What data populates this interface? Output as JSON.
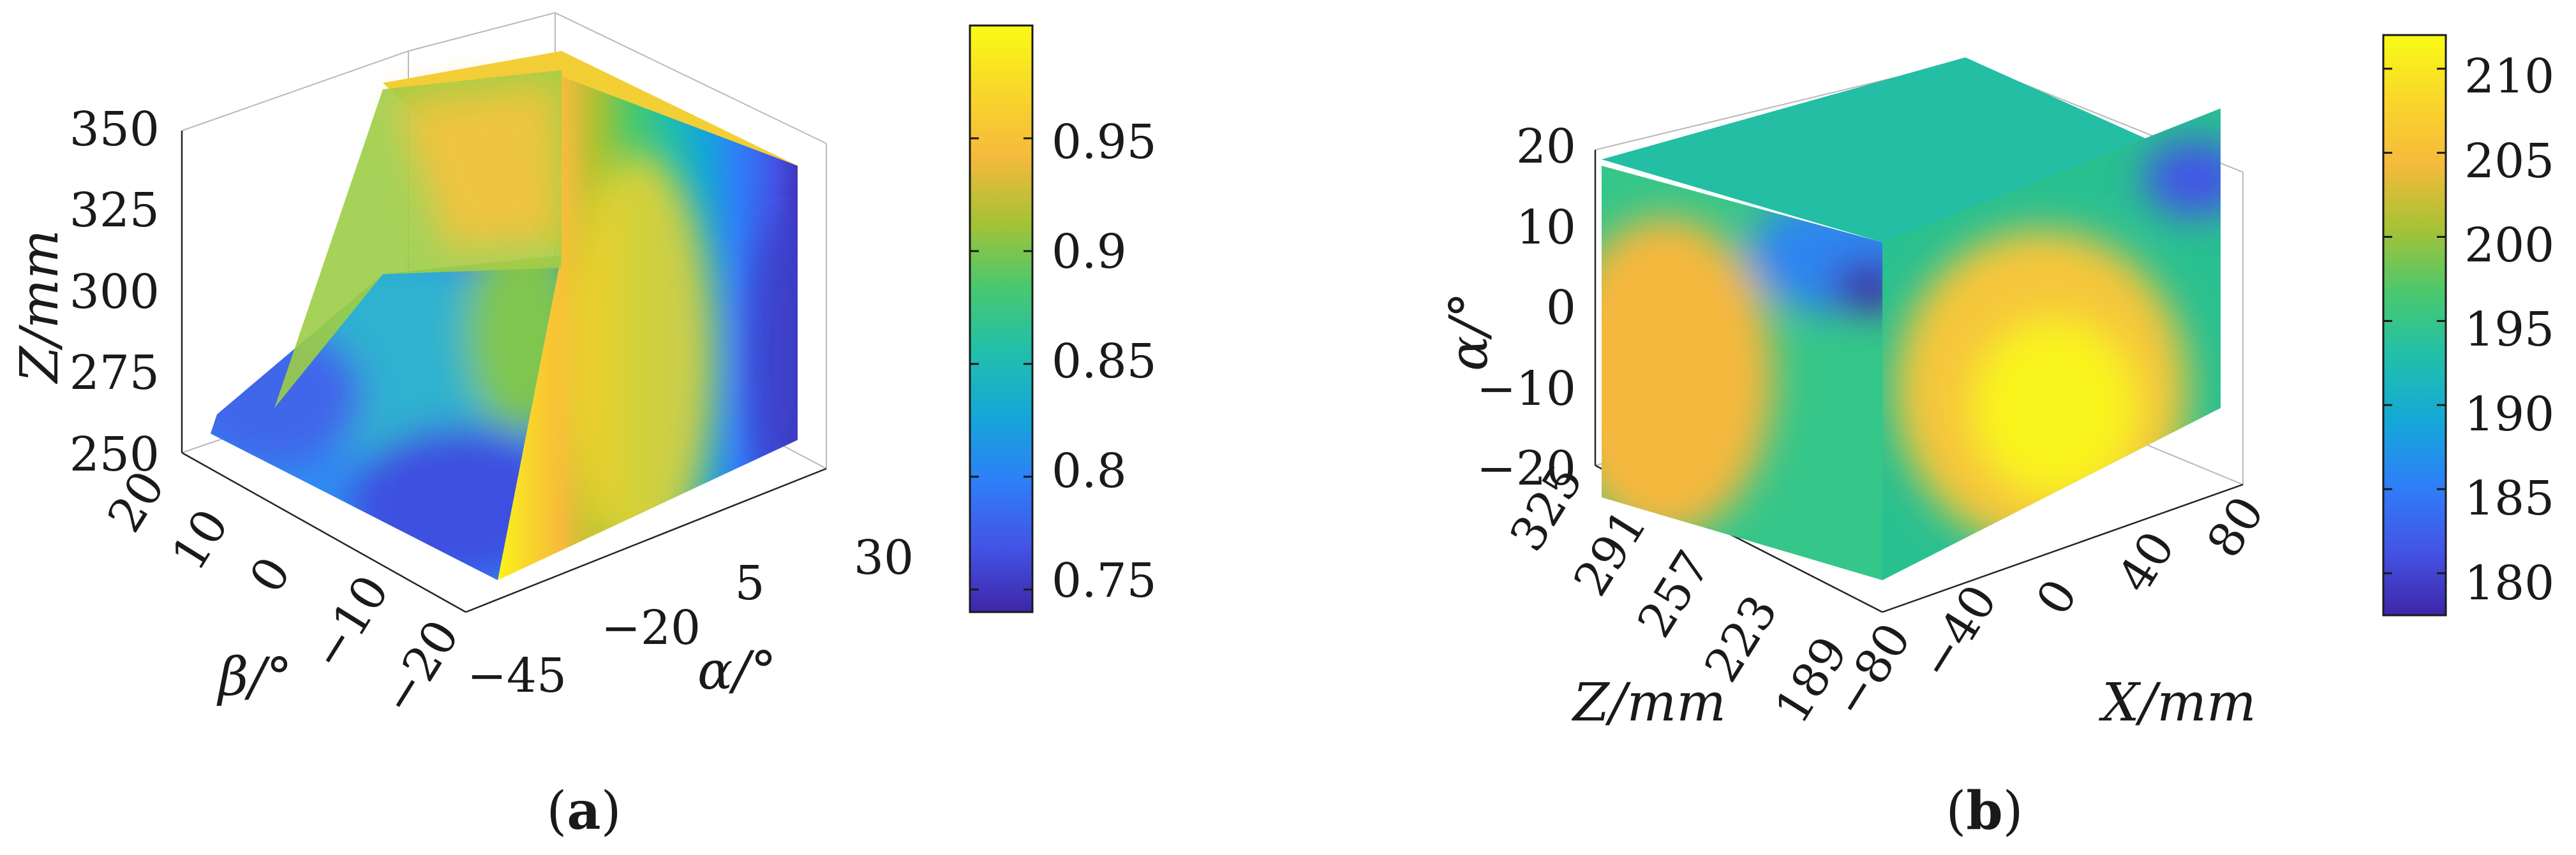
{
  "colors": {
    "colormap": [
      "#3e26a8",
      "#4354e6",
      "#2f7ef8",
      "#14a7d8",
      "#21bfab",
      "#4ac86e",
      "#a7c235",
      "#f6ba3c",
      "#f9d72a",
      "#f9fb15"
    ]
  },
  "chart_data": [
    {
      "id": "a",
      "type": "scatter3d",
      "caption": "a",
      "axes": {
        "x": {
          "label": "α/°",
          "ticks": [
            "−45",
            "−20",
            "5",
            "30"
          ],
          "range": [
            -45,
            30
          ]
        },
        "y": {
          "label": "β/°",
          "ticks": [
            "20",
            "10",
            "0",
            "−10",
            "−20"
          ],
          "range": [
            -20,
            20
          ]
        },
        "z": {
          "label": "Z/mm",
          "ticks": [
            "350",
            "325",
            "300",
            "275",
            "250"
          ],
          "range": [
            250,
            350
          ]
        }
      },
      "colorbar": {
        "ticks": [
          "0.95",
          "0.9",
          "0.85",
          "0.8",
          "0.75"
        ],
        "range": [
          0.74,
          1.0
        ]
      },
      "grid": true
    },
    {
      "id": "b",
      "type": "scatter3d",
      "caption": "b",
      "axes": {
        "x": {
          "label": "X/mm",
          "ticks": [
            "−80",
            "−40",
            "0",
            "40",
            "80"
          ],
          "range": [
            -80,
            80
          ]
        },
        "y": {
          "label": "Z/mm",
          "ticks": [
            "325",
            "291",
            "257",
            "223",
            "189"
          ],
          "range": [
            189,
            325
          ]
        },
        "z": {
          "label": "α/°",
          "ticks": [
            "20",
            "10",
            "0",
            "−10",
            "−20"
          ],
          "range": [
            -20,
            20
          ]
        }
      },
      "colorbar": {
        "ticks": [
          "210",
          "205",
          "200",
          "195",
          "190",
          "185",
          "180"
        ],
        "range": [
          177.5,
          212
        ]
      },
      "grid": true
    }
  ]
}
